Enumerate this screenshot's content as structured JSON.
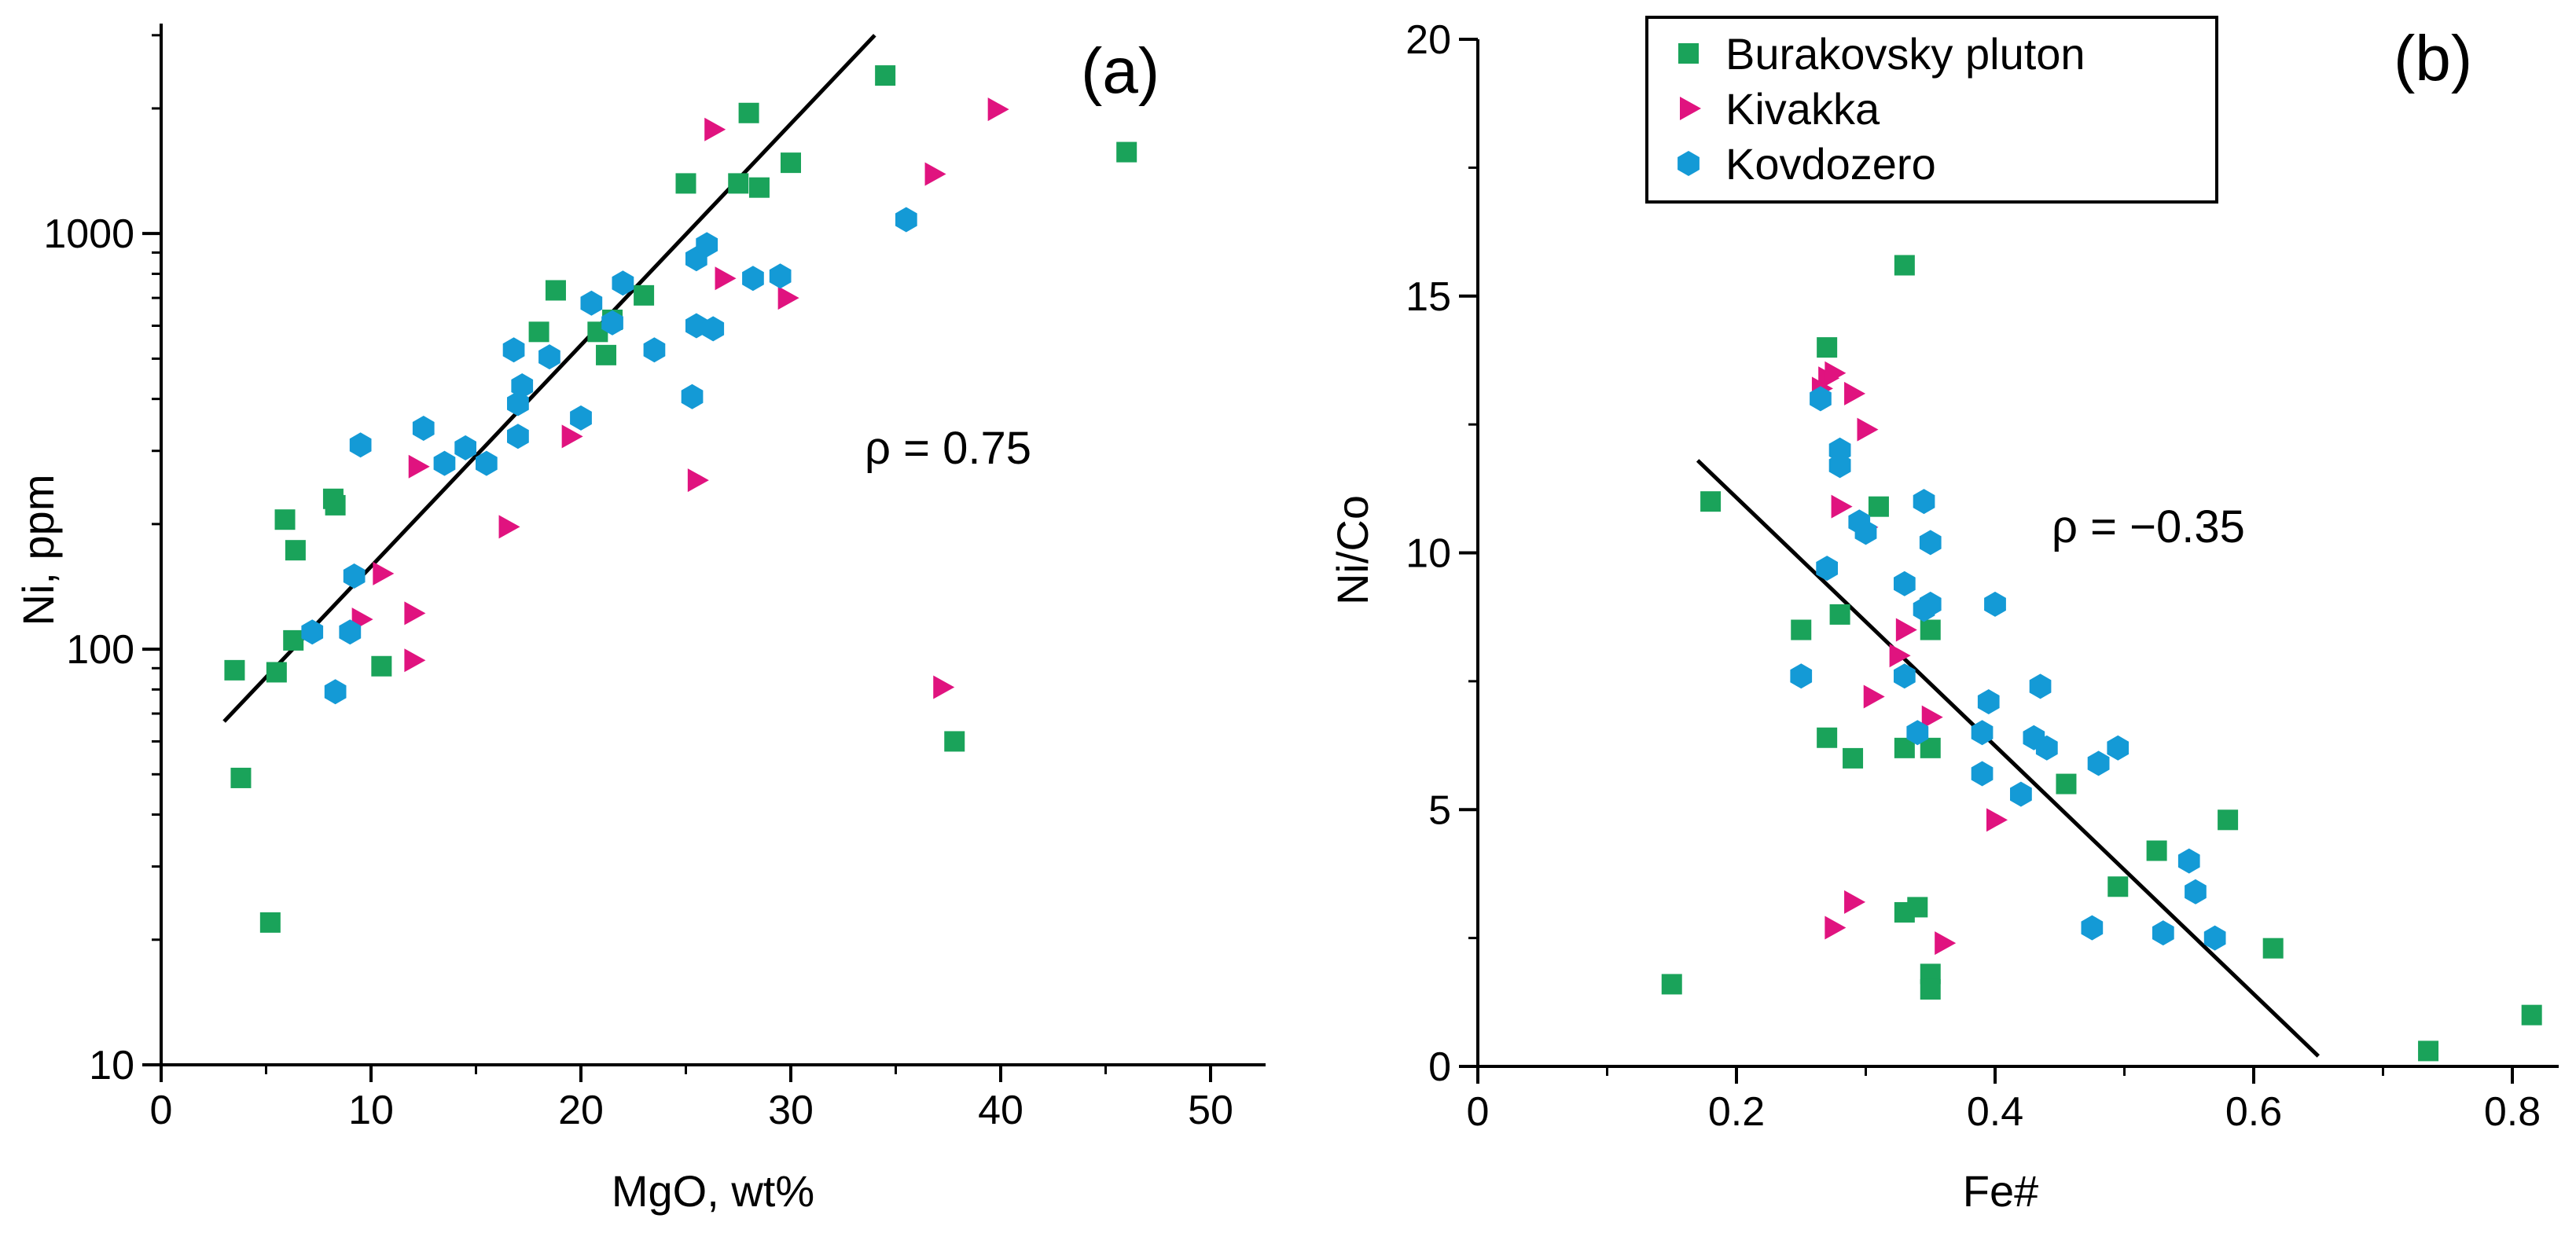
{
  "figure": {
    "series_legend": [
      {
        "name": "Burakovsky pluton",
        "color": "#1aa35a",
        "marker": "square"
      },
      {
        "name": "Kivakka",
        "color": "#e0137f",
        "marker": "triangle-right"
      },
      {
        "name": "Kovdozero",
        "color": "#149ad6",
        "marker": "hexagon"
      }
    ]
  },
  "chart_data": [
    {
      "type": "scatter",
      "panel_label": "(a)",
      "title": "",
      "xlabel": "MgO,  wt%",
      "ylabel": "Ni, ppm",
      "xlim": [
        0,
        50
      ],
      "ylim": [
        10,
        3200
      ],
      "yscale": "log",
      "xticks": [
        0,
        10,
        20,
        30,
        40,
        50
      ],
      "xtick_labels": [
        "0",
        "10",
        "20",
        "30",
        "40",
        "50"
      ],
      "yticks": [
        10,
        100,
        1000
      ],
      "ytick_labels": [
        "10",
        "100",
        "1000"
      ],
      "annotation": "ρ = 0.75",
      "fit_line": {
        "x": [
          3,
          34
        ],
        "y": [
          67,
          3000
        ]
      },
      "series": [
        {
          "name": "Burakovsky pluton",
          "x": [
            3.5,
            3.8,
            5.2,
            5.5,
            5.9,
            6.3,
            6.4,
            8.2,
            8.3,
            10.5,
            18.0,
            18.8,
            20.8,
            21.2,
            21.5,
            23.0,
            25.0,
            27.5,
            28.5,
            28.0,
            30.0,
            34.5,
            46.0,
            37.8
          ],
          "y": [
            89,
            49,
            22,
            88,
            205,
            105,
            173,
            230,
            222,
            91,
            580,
            730,
            580,
            510,
            620,
            710,
            1320,
            1320,
            1290,
            1950,
            1480,
            2400,
            1570,
            60
          ]
        },
        {
          "name": "Kivakka",
          "x": [
            9.5,
            10.5,
            12.0,
            12.0,
            12.2,
            16.5,
            19.5,
            25.5,
            26.3,
            26.8,
            29.8,
            36.8,
            37.2,
            39.8
          ],
          "y": [
            118,
            152,
            94,
            122,
            275,
            197,
            325,
            255,
            1780,
            780,
            700,
            1390,
            81,
            1990
          ]
        },
        {
          "name": "Kovdozero",
          "x": [
            7.2,
            8.3,
            9.0,
            9.2,
            9.5,
            12.5,
            13.5,
            14.5,
            15.5,
            16.8,
            17.0,
            17.2,
            17.0,
            18.5,
            20.0,
            20.5,
            21.5,
            22.0,
            23.5,
            25.5,
            25.5,
            26.0,
            26.3,
            25.3,
            28.2,
            29.5,
            35.5
          ],
          "y": [
            110,
            79,
            110,
            150,
            310,
            340,
            280,
            305,
            280,
            525,
            390,
            430,
            325,
            505,
            360,
            680,
            610,
            760,
            525,
            870,
            600,
            940,
            590,
            405,
            780,
            790,
            1080
          ]
        }
      ]
    },
    {
      "type": "scatter",
      "panel_label": "(b)",
      "title": "",
      "xlabel": "Fe#",
      "ylabel": "Ni/Co",
      "xlim": [
        0,
        0.85
      ],
      "ylim": [
        0,
        20
      ],
      "xticks": [
        0,
        0.2,
        0.4,
        0.6,
        0.8
      ],
      "xtick_labels": [
        "0",
        "0.2",
        "0.4",
        "0.6",
        "0.8"
      ],
      "yticks": [
        0,
        5,
        10,
        15,
        20
      ],
      "ytick_labels": [
        "0",
        "5",
        "10",
        "15",
        "20"
      ],
      "annotation": "ρ = −0.35",
      "fit_line": {
        "x": [
          0.17,
          0.65
        ],
        "y": [
          11.8,
          0.2
        ]
      },
      "series": [
        {
          "name": "Burakovsky pluton",
          "x": [
            0.15,
            0.18,
            0.27,
            0.27,
            0.28,
            0.25,
            0.29,
            0.31,
            0.33,
            0.33,
            0.34,
            0.35,
            0.35,
            0.35,
            0.35,
            0.455,
            0.495,
            0.525,
            0.58,
            0.615,
            0.735,
            0.815,
            0.33
          ],
          "y": [
            1.6,
            11.0,
            14.0,
            6.4,
            8.8,
            8.5,
            6.0,
            10.9,
            6.2,
            3.0,
            3.1,
            6.2,
            1.8,
            1.5,
            8.5,
            5.5,
            3.5,
            4.2,
            4.8,
            2.3,
            0.3,
            1.0,
            15.6
          ]
        },
        {
          "name": "Kivakka",
          "x": [
            0.27,
            0.275,
            0.28,
            0.29,
            0.3,
            0.3,
            0.305,
            0.325,
            0.33,
            0.35,
            0.36,
            0.4,
            0.275,
            0.29,
            0.265
          ],
          "y": [
            13.4,
            2.7,
            10.9,
            13.1,
            12.4,
            10.5,
            7.2,
            8.0,
            8.5,
            6.8,
            2.4,
            4.8,
            13.5,
            3.2,
            13.2
          ]
        },
        {
          "name": "Kovdozero",
          "x": [
            0.25,
            0.265,
            0.27,
            0.28,
            0.28,
            0.295,
            0.3,
            0.33,
            0.33,
            0.34,
            0.345,
            0.35,
            0.35,
            0.345,
            0.39,
            0.39,
            0.395,
            0.4,
            0.42,
            0.43,
            0.435,
            0.44,
            0.475,
            0.48,
            0.495,
            0.53,
            0.55,
            0.555,
            0.57
          ],
          "y": [
            7.6,
            13.0,
            9.7,
            12.0,
            11.7,
            10.6,
            10.4,
            9.4,
            7.6,
            6.5,
            11.0,
            9.0,
            10.2,
            8.9,
            6.5,
            5.7,
            7.1,
            9.0,
            5.3,
            6.4,
            7.4,
            6.2,
            2.7,
            5.9,
            6.2,
            2.6,
            4.0,
            3.4,
            2.5
          ]
        }
      ]
    }
  ]
}
